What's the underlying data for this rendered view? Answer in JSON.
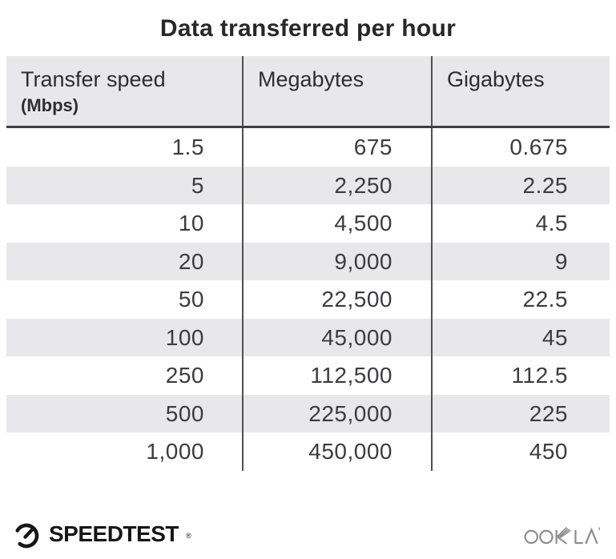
{
  "title": "Data transferred per hour",
  "table": {
    "columns": [
      {
        "label": "Transfer speed",
        "sublabel": "(Mbps)"
      },
      {
        "label": "Megabytes"
      },
      {
        "label": "Gigabytes"
      }
    ],
    "rows": [
      [
        "1.5",
        "675",
        "0.675"
      ],
      [
        "5",
        "2,250",
        "2.25"
      ],
      [
        "10",
        "4,500",
        "4.5"
      ],
      [
        "20",
        "9,000",
        "9"
      ],
      [
        "50",
        "22,500",
        "22.5"
      ],
      [
        "100",
        "45,000",
        "45"
      ],
      [
        "250",
        "112,500",
        "112.5"
      ],
      [
        "500",
        "225,000",
        "225"
      ],
      [
        "1,000",
        "450,000",
        "450"
      ]
    ]
  },
  "footer": {
    "speedtest_label": "SPEEDTEST",
    "speedtest_trademark": "®",
    "ookla_label": "OOKLA"
  },
  "colors": {
    "header-bg": "#e8e7ea",
    "stripe-bg": "#e8e7ea",
    "divider": "#504f56",
    "header-underline": "#3f3e45",
    "title-text": "#28272a",
    "header-text": "#2e2d31",
    "cell-text": "#3c3b3f",
    "speedtest-black": "#161616",
    "ookla-gray": "#8e8d90"
  }
}
